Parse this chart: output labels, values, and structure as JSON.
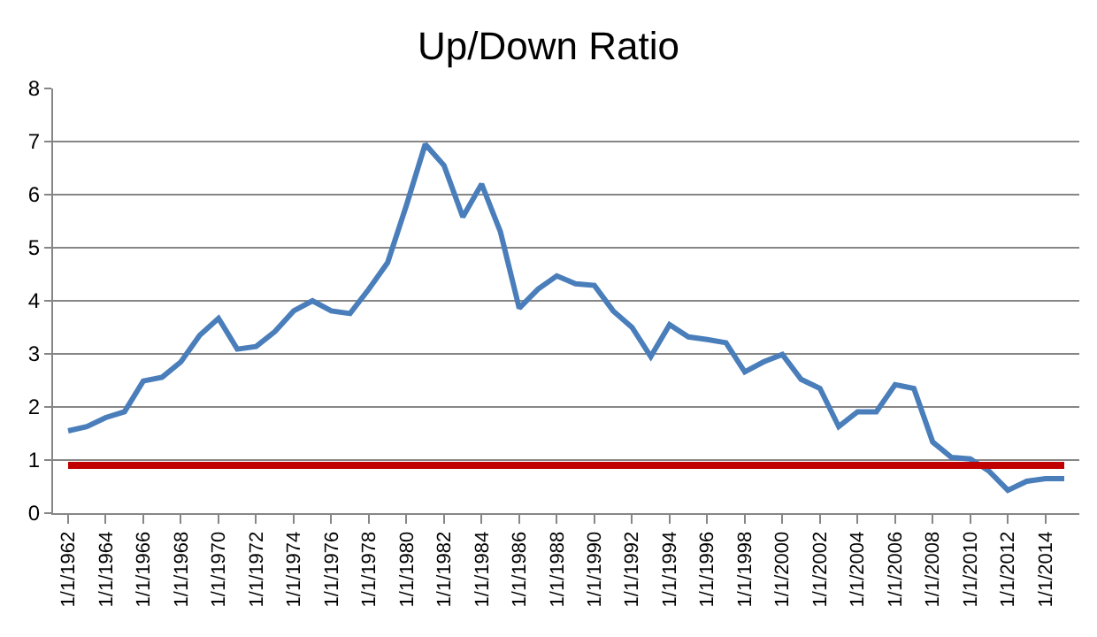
{
  "chart_data": {
    "type": "line",
    "title": "Up/Down Ratio",
    "categories": [
      "1/1/1962",
      null,
      "1/1/1964",
      null,
      "1/1/1966",
      null,
      "1/1/1968",
      null,
      "1/1/1970",
      null,
      "1/1/1972",
      null,
      "1/1/1974",
      null,
      "1/1/1976",
      null,
      "1/1/1978",
      null,
      "1/1/1980",
      null,
      "1/1/1982",
      null,
      "1/1/1984",
      null,
      "1/1/1986",
      null,
      "1/1/1988",
      null,
      "1/1/1990",
      null,
      "1/1/1992",
      null,
      "1/1/1994",
      null,
      "1/1/1996",
      null,
      "1/1/1998",
      null,
      "1/1/2000",
      null,
      "1/1/2002",
      null,
      "1/1/2004",
      null,
      "1/1/2006",
      null,
      "1/1/2008",
      null,
      "1/1/2010",
      null,
      "1/1/2012",
      null,
      "1/1/2014",
      null
    ],
    "series": [
      {
        "color": "#4a7ebb",
        "values": [
          1.55,
          1.63,
          1.8,
          1.91,
          2.49,
          2.56,
          2.85,
          3.35,
          3.67,
          3.09,
          3.14,
          3.42,
          3.81,
          4.0,
          3.81,
          3.76,
          4.22,
          4.72,
          5.8,
          6.95,
          6.55,
          5.58,
          6.2,
          5.3,
          3.86,
          4.22,
          4.47,
          4.32,
          4.29,
          3.81,
          3.5,
          2.95,
          3.55,
          3.32,
          3.27,
          3.21,
          2.66,
          2.85,
          2.99,
          2.52,
          2.35,
          1.63,
          1.91,
          1.91,
          2.42,
          2.35,
          1.34,
          1.05,
          1.02,
          0.79,
          0.43,
          0.6,
          0.65,
          0.65
        ]
      }
    ],
    "ref_lines": [
      {
        "axis": "y",
        "value": 0.9,
        "color": "#c00000"
      }
    ],
    "ylim": [
      0,
      8
    ],
    "yticks": [
      0,
      1,
      2,
      3,
      4,
      5,
      6,
      7,
      8
    ],
    "grid": "y",
    "line_style": "solid",
    "marker": "none"
  }
}
